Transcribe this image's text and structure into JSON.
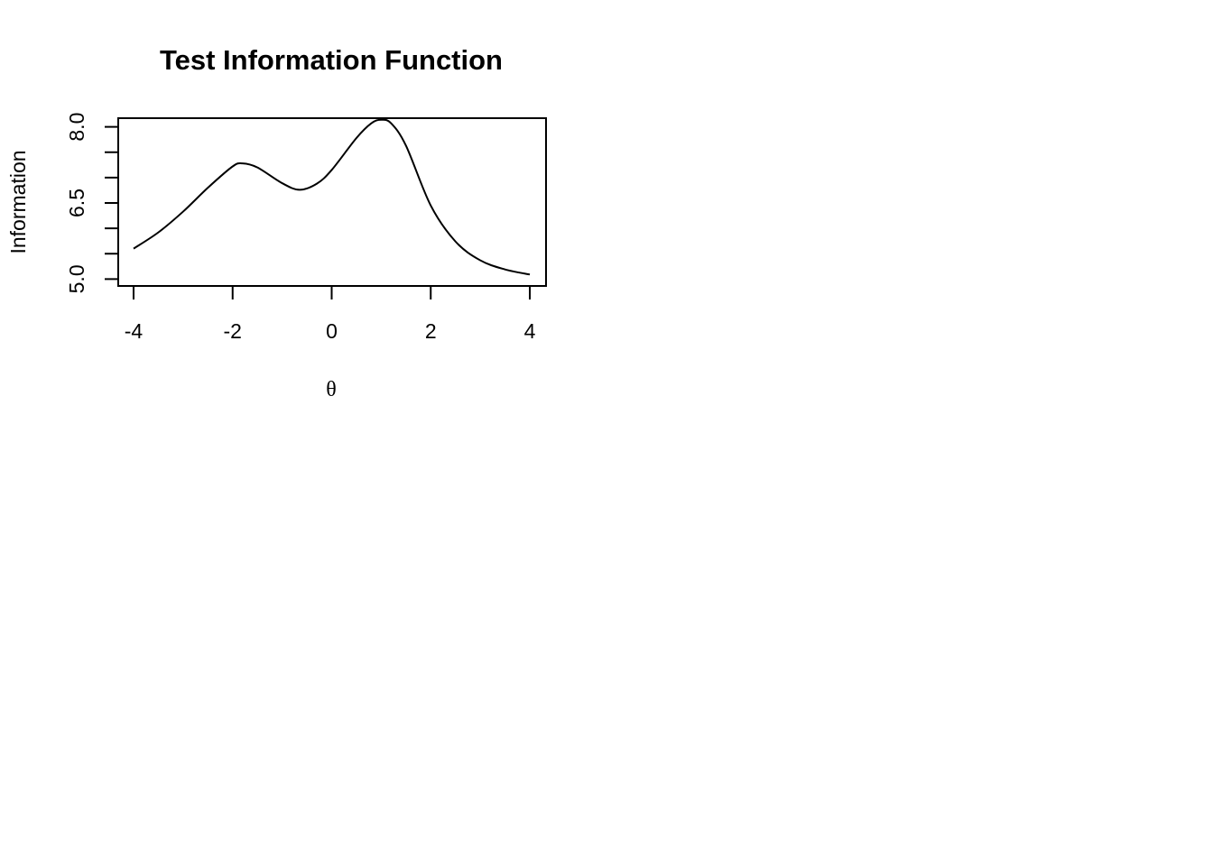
{
  "chart_data": {
    "type": "line",
    "title": "Test Information Function",
    "xlabel": "θ",
    "ylabel": "Information",
    "xlim": [
      -4,
      4
    ],
    "ylim": [
      4.9,
      8.1
    ],
    "x_ticks": [
      -4,
      -2,
      0,
      2,
      4
    ],
    "x_tick_labels": [
      "-4",
      "-2",
      "0",
      "2",
      "4"
    ],
    "y_ticks": [
      5.0,
      5.5,
      6.0,
      6.5,
      7.0,
      7.5,
      8.0
    ],
    "y_tick_labels": [
      "5.0",
      "",
      "",
      "6.5",
      "",
      "",
      "8.0"
    ],
    "grid": false,
    "series": [
      {
        "x": [
          -4.0,
          -3.5,
          -3.0,
          -2.5,
          -2.0,
          -1.8,
          -1.5,
          -1.0,
          -0.65,
          -0.3,
          0.0,
          0.5,
          0.8,
          1.0,
          1.2,
          1.5,
          2.0,
          2.5,
          3.0,
          3.5,
          4.0
        ],
        "y": [
          5.6,
          5.92,
          6.33,
          6.8,
          7.22,
          7.28,
          7.2,
          6.89,
          6.76,
          6.88,
          7.15,
          7.78,
          8.07,
          8.14,
          8.07,
          7.63,
          6.45,
          5.74,
          5.37,
          5.19,
          5.09
        ]
      }
    ]
  }
}
